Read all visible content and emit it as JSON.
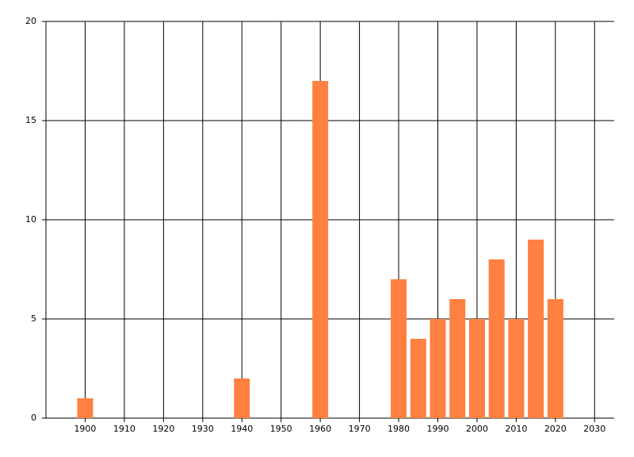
{
  "chart_data": {
    "type": "bar",
    "x": [
      1900,
      1940,
      1960,
      1980,
      1985,
      1990,
      1995,
      2000,
      2005,
      2010,
      2015,
      2020
    ],
    "values": [
      1,
      2,
      17,
      7,
      4,
      5,
      6,
      5,
      8,
      5,
      9,
      6
    ],
    "color": "#ff8040",
    "xlim": [
      1890,
      2035
    ],
    "xticks": [
      1900,
      1910,
      1920,
      1930,
      1940,
      1950,
      1960,
      1970,
      1980,
      1990,
      2000,
      2010,
      2020,
      2030
    ],
    "ylim": [
      0,
      20
    ],
    "yticks": [
      0,
      5,
      10,
      15,
      20
    ],
    "grid": true
  }
}
